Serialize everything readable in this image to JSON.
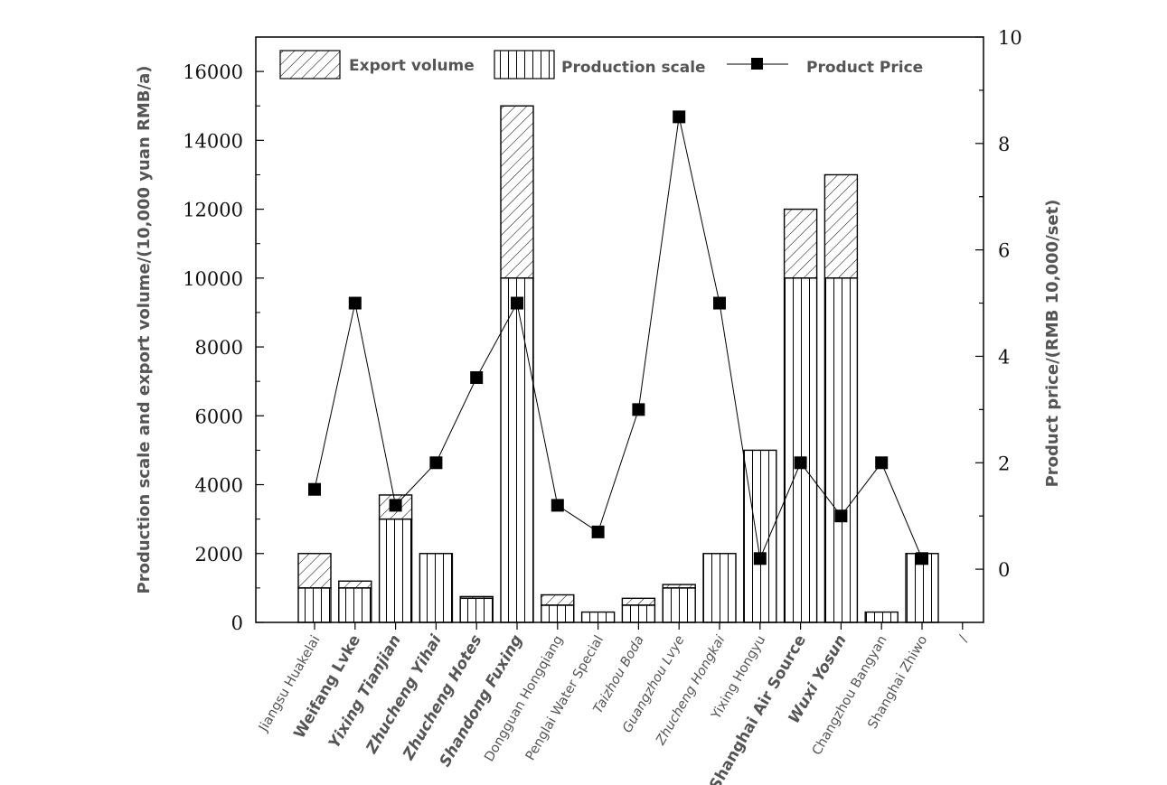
{
  "chart_data": {
    "type": "bar",
    "ylabel_left": "Production scale and export volume/(10,000 yuan RMB/a)",
    "ylabel_right": "Product price/(RMB 10,000/set)",
    "ylim_left": [
      0,
      17000
    ],
    "ylim_right": [
      -1,
      10
    ],
    "yticks_left": [
      "0",
      "2000",
      "4000",
      "6000",
      "8000",
      "10000",
      "12000",
      "14000",
      "16000"
    ],
    "yticks_right": [
      "0",
      "2",
      "4",
      "6",
      "8",
      "10"
    ],
    "categories": [
      "Jiangsu Huakelai",
      "Weifang Lvke",
      "Yixing Tianjian",
      "Zhucheng Yihai",
      "Zhucheng Hotes",
      "Shandong Fuxing",
      "Dongguan Hongqiang",
      "Penglai Water Special",
      "Taizhou Boda",
      "Guangzhou Lvye",
      "Zhucheng Hongkai",
      "Yixing Hongyu",
      "Shanghai Air Source",
      "Wuxi Yosun",
      "Changzhou Bangyan",
      "Shanghai Zhiwo",
      "/"
    ],
    "series": [
      {
        "name": "Production scale",
        "type": "bar",
        "pattern": "vertical-lines",
        "values": [
          1000,
          1000,
          3000,
          2000,
          700,
          10000,
          500,
          300,
          500,
          1000,
          2000,
          5000,
          10000,
          10000,
          300,
          2000,
          null
        ]
      },
      {
        "name": "Export volume",
        "type": "bar-stacked",
        "pattern": "diagonal-hatch",
        "values": [
          1000,
          200,
          700,
          0,
          50,
          5000,
          300,
          0,
          200,
          100,
          0,
          0,
          2000,
          3000,
          0,
          0,
          null
        ]
      },
      {
        "name": "Product Price",
        "type": "line",
        "axis": "right",
        "marker": "square",
        "values": [
          1.5,
          5.0,
          1.2,
          2.0,
          3.6,
          5.0,
          1.2,
          0.7,
          3.0,
          8.5,
          5.0,
          0.2,
          2.0,
          1.0,
          2.0,
          0.2,
          null
        ]
      }
    ],
    "legend": [
      "Export volume",
      "Production scale",
      "Product Price"
    ],
    "legend_position": "top-inside",
    "grid": false,
    "colors": {
      "bar_fill": "#ffffff",
      "stroke": "#000000",
      "highlight_label": "#29a3e0",
      "text": "#555555"
    }
  }
}
